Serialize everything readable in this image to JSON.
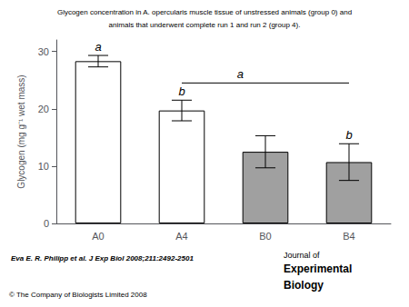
{
  "chart_data": {
    "type": "bar",
    "title": "Glycogen concentration in A. opercularis muscle tissue of unstressed animals (group 0) and",
    "subtitle": "animals that underwent complete run 1 and run 2 (group 4).",
    "categories": [
      "A0",
      "A4",
      "B0",
      "B4"
    ],
    "values": [
      28.3,
      19.7,
      12.5,
      10.7
    ],
    "errors": [
      1.0,
      1.8,
      2.8,
      3.2
    ],
    "colors": [
      "white",
      "white",
      "#a0a0a0",
      "#a0a0a0"
    ],
    "letter_labels": [
      "a",
      "b",
      null,
      "b"
    ],
    "bracket": {
      "label": "a",
      "from": "A4",
      "to": "B4",
      "y": 24.5
    },
    "ylabel": "Glycogen (mg g⁻¹ wet mass)",
    "ylim": [
      0,
      32
    ],
    "yticks": [
      0,
      10,
      20,
      30
    ],
    "grid": false,
    "citation": "Eva E. R. Philipp et al. J Exp Biol 2008;211:2492-2501",
    "copyright": "© The Company of Biologists Limited 2008",
    "journal": [
      "Journal of",
      "Experimental",
      "Biology"
    ]
  }
}
